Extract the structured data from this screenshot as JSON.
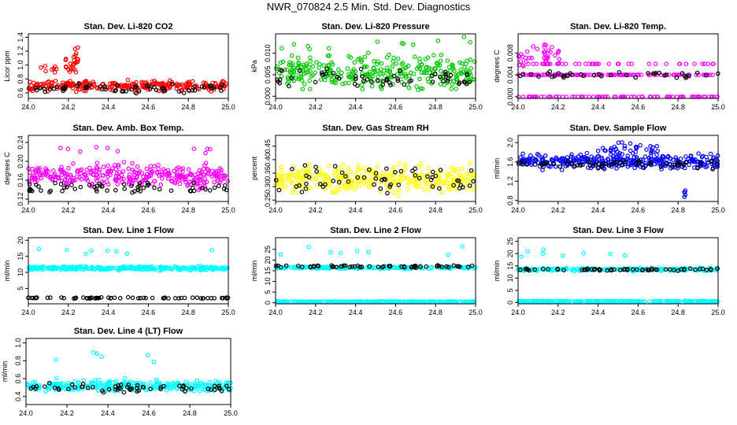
{
  "title": "NWR_070824  2.5 Min. Std. Dev. Diagnostics",
  "colors": {
    "red": "#ff0000",
    "green": "#00c800",
    "magenta": "#ff00ff",
    "yellow": "#ffff00",
    "blue": "#0000ff",
    "cyan": "#00ffff",
    "black": "#000000"
  },
  "chart_data": [
    {
      "type": "scatter",
      "title": "Stan. Dev. Li-820 CO2",
      "ylabel": "Licor ppm",
      "color": "#ff0000",
      "x_ticks": [
        "24.0",
        "24.2",
        "24.4",
        "24.6",
        "24.8",
        "25.0"
      ],
      "xlim": [
        24.0,
        25.0
      ],
      "y_ticks": [
        "0.6",
        "0.8",
        "1.0",
        "1.2",
        "1.4"
      ],
      "y_tick_values": [
        0.6,
        0.8,
        1.0,
        1.2,
        1.4
      ],
      "ylim": [
        0.52,
        1.45
      ],
      "series": [
        {
          "name": "main",
          "level": 0.7,
          "spread": 0.06,
          "n": 260
        },
        {
          "name": "black",
          "level": 0.67,
          "spread": 0.05,
          "n": 60
        },
        {
          "name": "spike",
          "x_range": [
            24.18,
            24.25
          ],
          "level": 1.05,
          "spread": 0.18,
          "n": 25
        },
        {
          "name": "outliers",
          "x_range": [
            24.05,
            24.15
          ],
          "level": 0.93,
          "spread": 0.05,
          "n": 8
        }
      ]
    },
    {
      "type": "scatter",
      "title": "Stan. Dev. Li-820 Pressure",
      "ylabel": "kPa",
      "color": "#00c800",
      "x_ticks": [
        "24.0",
        "24.2",
        "24.4",
        "24.6",
        "24.8",
        "25.0"
      ],
      "xlim": [
        24.0,
        25.0
      ],
      "y_ticks": [
        "0.000",
        "0.005",
        "0.010"
      ],
      "y_tick_values": [
        0.0,
        0.005,
        0.01
      ],
      "ylim": [
        -0.0005,
        0.0145
      ],
      "series": [
        {
          "name": "main",
          "level": 0.0055,
          "spread": 0.003,
          "n": 300
        },
        {
          "name": "black",
          "level": 0.004,
          "spread": 0.002,
          "n": 60
        },
        {
          "name": "outliers",
          "level": 0.012,
          "spread": 0.0015,
          "n": 12
        }
      ]
    },
    {
      "type": "scatter",
      "title": "Stan. Dev. Li-820 Temp.",
      "ylabel": "degrees C",
      "color": "#ff00ff",
      "x_ticks": [
        "24.0",
        "24.2",
        "24.4",
        "24.6",
        "24.8",
        "25.0"
      ],
      "xlim": [
        24.0,
        25.0
      ],
      "y_ticks": [
        "0.000",
        "0.004",
        "0.008"
      ],
      "y_tick_values": [
        0.0,
        0.004,
        0.008
      ],
      "ylim": [
        -0.0003,
        0.0115
      ],
      "series": [
        {
          "name": "band",
          "level": 0.004,
          "spread": 0.0,
          "n": 110
        },
        {
          "name": "zero",
          "level": 0.0,
          "spread": 0.0,
          "n": 90
        },
        {
          "name": "upper",
          "level": 0.006,
          "spread": 0.0,
          "n": 40
        },
        {
          "name": "bump",
          "x_range": [
            24.0,
            24.22
          ],
          "level": 0.0075,
          "spread": 0.0015,
          "n": 40
        },
        {
          "name": "black",
          "level": 0.004,
          "spread": 0.0005,
          "n": 40
        }
      ]
    },
    {
      "type": "scatter",
      "title": "Stan. Dev. Amb. Box Temp.",
      "ylabel": "degrees C",
      "color": "#ff00ff",
      "x_ticks": [
        "24.0",
        "24.2",
        "24.4",
        "24.6",
        "24.8",
        "25.0"
      ],
      "xlim": [
        24.0,
        25.0
      ],
      "y_ticks": [
        "0.12",
        "0.16",
        "0.20",
        "0.24"
      ],
      "y_tick_values": [
        0.12,
        0.16,
        0.2,
        0.24
      ],
      "ylim": [
        0.115,
        0.255
      ],
      "series": [
        {
          "name": "main",
          "level": 0.17,
          "spread": 0.02,
          "n": 320
        },
        {
          "name": "black",
          "level": 0.145,
          "spread": 0.01,
          "n": 60
        },
        {
          "name": "outliers",
          "level": 0.22,
          "spread": 0.015,
          "n": 10
        }
      ]
    },
    {
      "type": "scatter",
      "title": "Stan. Dev. Gas Stream RH",
      "ylabel": "percent",
      "color": "#ffff00",
      "x_ticks": [
        "24.0",
        "24.2",
        "24.4",
        "24.6",
        "24.8",
        "25.0"
      ],
      "xlim": [
        24.0,
        25.0
      ],
      "y_ticks": [
        "0.25",
        "0.30",
        "0.35",
        "0.40",
        "0.45"
      ],
      "y_tick_values": [
        0.25,
        0.3,
        0.35,
        0.4,
        0.45
      ],
      "ylim": [
        0.245,
        0.49
      ],
      "series": [
        {
          "name": "main",
          "level": 0.33,
          "spread": 0.04,
          "n": 320
        },
        {
          "name": "black",
          "level": 0.33,
          "spread": 0.04,
          "n": 60
        }
      ]
    },
    {
      "type": "scatter",
      "title": "Stan. Dev. Sample Flow",
      "ylabel": "ml/min",
      "color": "#0000ff",
      "x_ticks": [
        "24.0",
        "24.2",
        "24.4",
        "24.6",
        "24.8",
        "25.0"
      ],
      "xlim": [
        24.0,
        25.0
      ],
      "y_ticks": [
        "0.8",
        "1.2",
        "1.6",
        "2.0"
      ],
      "y_tick_values": [
        0.8,
        1.2,
        1.6,
        2.0
      ],
      "ylim": [
        0.78,
        2.15
      ],
      "series": [
        {
          "name": "main",
          "level": 1.6,
          "spread": 0.12,
          "n": 320
        },
        {
          "name": "hump",
          "x_range": [
            24.4,
            24.7
          ],
          "level": 1.85,
          "spread": 0.12,
          "n": 40
        },
        {
          "name": "black",
          "level": 1.55,
          "spread": 0.08,
          "n": 60
        },
        {
          "name": "dip",
          "x_range": [
            24.82,
            24.84
          ],
          "level": 0.95,
          "spread": 0.1,
          "n": 5
        }
      ]
    },
    {
      "type": "scatter",
      "title": "Stan. Dev. Line 1 Flow",
      "ylabel": "ml/min",
      "color": "#00ffff",
      "x_ticks": [
        "24.0",
        "24.2",
        "24.4",
        "24.6",
        "24.8",
        "25.0"
      ],
      "xlim": [
        24.0,
        25.0
      ],
      "y_ticks": [
        "5",
        "10",
        "15",
        "20"
      ],
      "y_tick_values": [
        5,
        10,
        15,
        20
      ],
      "ylim": [
        0.2,
        20.8
      ],
      "series": [
        {
          "name": "main",
          "level": 11.3,
          "spread": 0.5,
          "n": 320
        },
        {
          "name": "black",
          "level": 2.0,
          "spread": 0.15,
          "n": 60
        },
        {
          "name": "outliers",
          "level": 16.5,
          "spread": 1.0,
          "n": 8
        }
      ]
    },
    {
      "type": "scatter",
      "title": "Stan. Dev. Line 2 Flow",
      "ylabel": "ml/min",
      "color": "#00ffff",
      "x_ticks": [
        "24.0",
        "24.2",
        "24.4",
        "24.6",
        "24.8",
        "25.0"
      ],
      "xlim": [
        24.0,
        25.0
      ],
      "y_ticks": [
        "0",
        "5",
        "10",
        "15",
        "20",
        "25"
      ],
      "y_tick_values": [
        0,
        5,
        10,
        15,
        20,
        25
      ],
      "ylim": [
        -0.5,
        30.5
      ],
      "series": [
        {
          "name": "main",
          "level": 16.5,
          "spread": 0.5,
          "n": 220
        },
        {
          "name": "zero",
          "level": 0.5,
          "spread": 0.15,
          "n": 260
        },
        {
          "name": "black",
          "level": 17.0,
          "spread": 0.4,
          "n": 60
        },
        {
          "name": "outliers",
          "level": 24.0,
          "spread": 2.5,
          "n": 8
        }
      ]
    },
    {
      "type": "scatter",
      "title": "Stan. Dev. Line 3 Flow",
      "ylabel": "ml/min",
      "color": "#00ffff",
      "x_ticks": [
        "24.0",
        "24.2",
        "24.4",
        "24.6",
        "24.8",
        "25.0"
      ],
      "xlim": [
        24.0,
        25.0
      ],
      "y_ticks": [
        "0",
        "5",
        "10",
        "15",
        "20",
        "25"
      ],
      "y_tick_values": [
        0,
        5,
        10,
        15,
        20,
        25
      ],
      "ylim": [
        -0.5,
        26.5
      ],
      "series": [
        {
          "name": "main",
          "level": 13.5,
          "spread": 0.5,
          "n": 220
        },
        {
          "name": "zero",
          "level": 0.5,
          "spread": 0.15,
          "n": 260
        },
        {
          "name": "black",
          "level": 13.5,
          "spread": 0.4,
          "n": 60
        },
        {
          "name": "outliers",
          "level": 20.0,
          "spread": 2.5,
          "n": 8
        }
      ]
    },
    {
      "type": "scatter",
      "title": "Stan. Dev. Line 4 (LT) Flow",
      "ylabel": "ml/min",
      "color": "#00ffff",
      "x_ticks": [
        "24.0",
        "24.2",
        "24.4",
        "24.6",
        "24.8",
        "25.0"
      ],
      "xlim": [
        24.0,
        25.0
      ],
      "y_ticks": [
        "0.4",
        "0.6",
        "0.8",
        "1.0"
      ],
      "y_tick_values": [
        0.4,
        0.6,
        0.8,
        1.0
      ],
      "ylim": [
        0.31,
        1.05
      ],
      "series": [
        {
          "name": "main",
          "level": 0.52,
          "spread": 0.05,
          "n": 300
        },
        {
          "name": "black",
          "level": 0.5,
          "spread": 0.04,
          "n": 60
        },
        {
          "name": "outliers",
          "level": 0.8,
          "spread": 0.1,
          "n": 6
        }
      ]
    }
  ]
}
